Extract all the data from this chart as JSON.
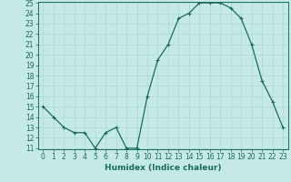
{
  "xlabel": "Humidex (Indice chaleur)",
  "ylabel": "",
  "x": [
    0,
    1,
    2,
    3,
    4,
    5,
    6,
    7,
    8,
    9,
    10,
    11,
    12,
    13,
    14,
    15,
    16,
    17,
    18,
    19,
    20,
    21,
    22,
    23
  ],
  "y": [
    15,
    14,
    13,
    12.5,
    12.5,
    11,
    12.5,
    13,
    11,
    11,
    16,
    19.5,
    21,
    23.5,
    24,
    25,
    25,
    25,
    24.5,
    23.5,
    21,
    17.5,
    15.5,
    13
  ],
  "ylim": [
    11,
    25
  ],
  "xlim": [
    -0.5,
    23.5
  ],
  "yticks": [
    11,
    12,
    13,
    14,
    15,
    16,
    17,
    18,
    19,
    20,
    21,
    22,
    23,
    24,
    25
  ],
  "xticks": [
    0,
    1,
    2,
    3,
    4,
    5,
    6,
    7,
    8,
    9,
    10,
    11,
    12,
    13,
    14,
    15,
    16,
    17,
    18,
    19,
    20,
    21,
    22,
    23
  ],
  "line_color": "#1a6b5a",
  "marker": "+",
  "bg_color": "#c5eae6",
  "grid_color": "#aad8d3",
  "tick_color": "#1a6b5a",
  "label_color": "#1a6b5a",
  "fontsize_tick": 5.5,
  "fontsize_label": 6.5
}
